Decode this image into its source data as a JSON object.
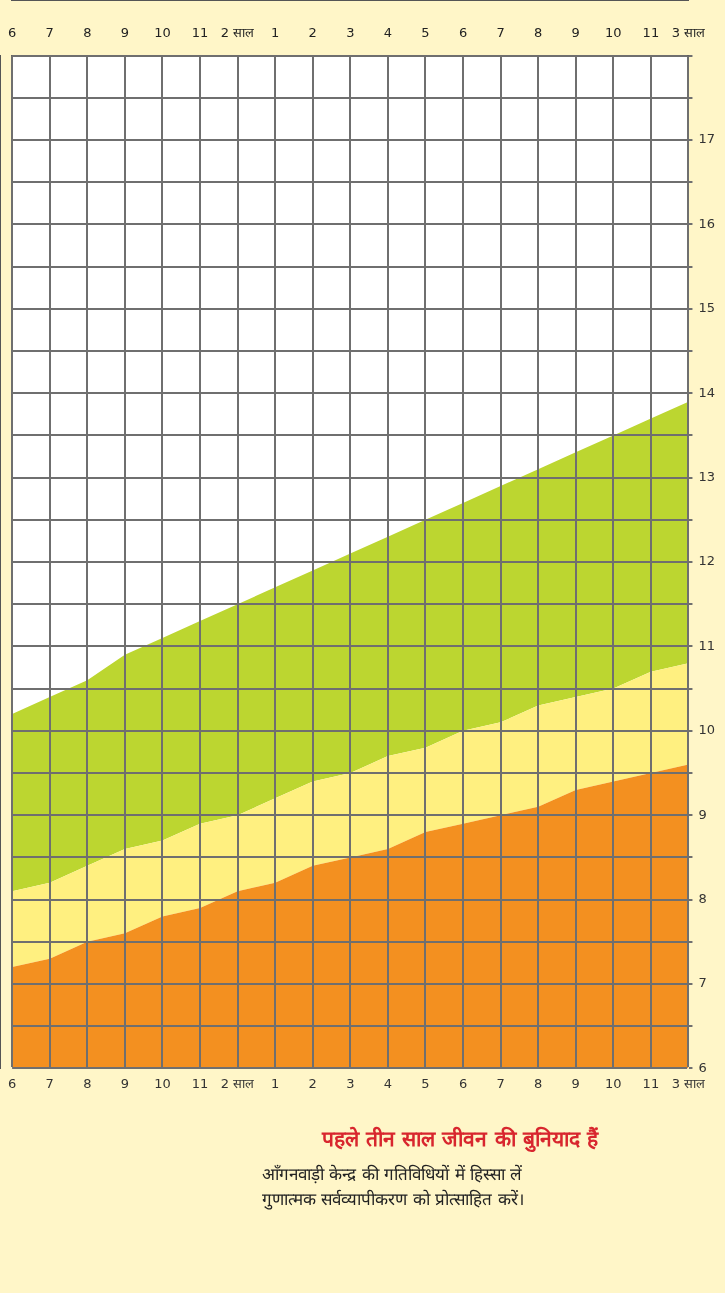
{
  "chart_data": {
    "type": "area",
    "title": "पहले तीन साल जीवन की बुनियाद हैं",
    "annotations": [
      "आँगनवाड़ी केन्द्र की गतिविधियों में हिस्सा लें",
      "गुणात्मक सर्वव्यापीकरण को प्रोत्साहित करें।"
    ],
    "categories": [
      "6",
      "7",
      "8",
      "9",
      "10",
      "11",
      "2 साल",
      "1",
      "2",
      "3",
      "4",
      "5",
      "6",
      "7",
      "8",
      "9",
      "10",
      "11",
      "3 साल"
    ],
    "series": [
      {
        "color": "#f39020",
        "values": [
          7.2,
          7.3,
          7.5,
          7.6,
          7.8,
          7.9,
          8.1,
          8.2,
          8.4,
          8.5,
          8.6,
          8.8,
          8.9,
          9.0,
          9.1,
          9.3,
          9.4,
          9.5,
          9.6
        ]
      },
      {
        "color": "#fff080",
        "values": [
          8.1,
          8.2,
          8.4,
          8.6,
          8.7,
          8.9,
          9.0,
          9.2,
          9.4,
          9.5,
          9.7,
          9.8,
          10.0,
          10.1,
          10.3,
          10.4,
          10.5,
          10.7,
          10.8
        ]
      },
      {
        "color": "#bcd630",
        "values": [
          10.2,
          10.4,
          10.6,
          10.9,
          11.1,
          11.3,
          11.5,
          11.7,
          11.9,
          12.1,
          12.3,
          12.5,
          12.7,
          12.9,
          13.1,
          13.3,
          13.5,
          13.7,
          13.9
        ]
      }
    ],
    "ylim": [
      6,
      18
    ],
    "yticks": [
      6,
      {
        "value": 6.5,
        "label": null
      },
      7,
      {
        "value": 7.5,
        "label": null
      },
      8,
      {
        "value": 8.5,
        "label": null
      },
      9,
      {
        "value": 9.5,
        "label": null
      },
      10,
      {
        "value": 10.5,
        "label": null
      },
      11,
      {
        "value": 11.5,
        "label": null
      },
      12,
      {
        "value": 12.5,
        "label": null
      },
      13,
      {
        "value": 13.5,
        "label": null
      },
      14,
      {
        "value": 14.5,
        "label": null
      },
      15,
      {
        "value": 15.5,
        "label": null
      },
      16,
      {
        "value": 16.5,
        "label": null
      },
      17,
      {
        "value": 17.5,
        "label": null
      },
      {
        "value": 18,
        "label": null
      }
    ],
    "grid": true
  }
}
